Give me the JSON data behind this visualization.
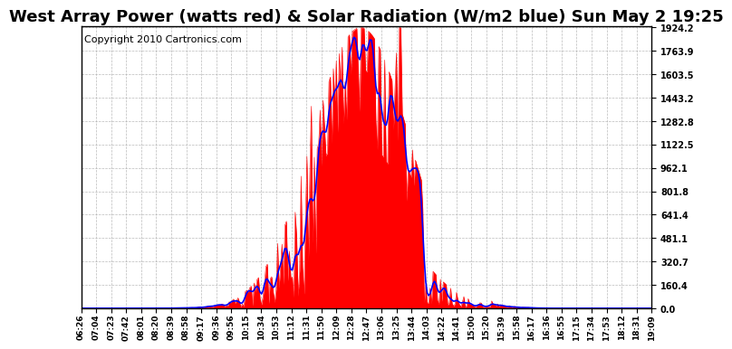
{
  "title": "West Array Power (watts red) & Solar Radiation (W/m2 blue) Sun May 2 19:25",
  "copyright": "Copyright 2010 Cartronics.com",
  "y_ticks": [
    0.0,
    160.4,
    320.7,
    481.1,
    641.4,
    801.8,
    962.1,
    1122.5,
    1282.8,
    1443.2,
    1603.5,
    1763.9,
    1924.2
  ],
  "x_labels": [
    "06:26",
    "07:04",
    "07:23",
    "07:42",
    "08:01",
    "08:20",
    "08:39",
    "08:58",
    "09:17",
    "09:36",
    "09:56",
    "10:15",
    "10:34",
    "10:53",
    "11:12",
    "11:31",
    "11:50",
    "12:09",
    "12:28",
    "12:47",
    "13:06",
    "13:25",
    "13:44",
    "14:03",
    "14:22",
    "14:41",
    "15:00",
    "15:20",
    "15:39",
    "15:58",
    "16:17",
    "16:36",
    "16:55",
    "17:15",
    "17:34",
    "17:53",
    "18:12",
    "18:31",
    "19:09"
  ],
  "y_max": 1924.2,
  "y_min": 0.0,
  "fill_color": "#FF0000",
  "line_color": "#0000FF",
  "background_color": "#FFFFFF",
  "grid_color": "#AAAAAA",
  "title_fontsize": 13,
  "copyright_fontsize": 8
}
